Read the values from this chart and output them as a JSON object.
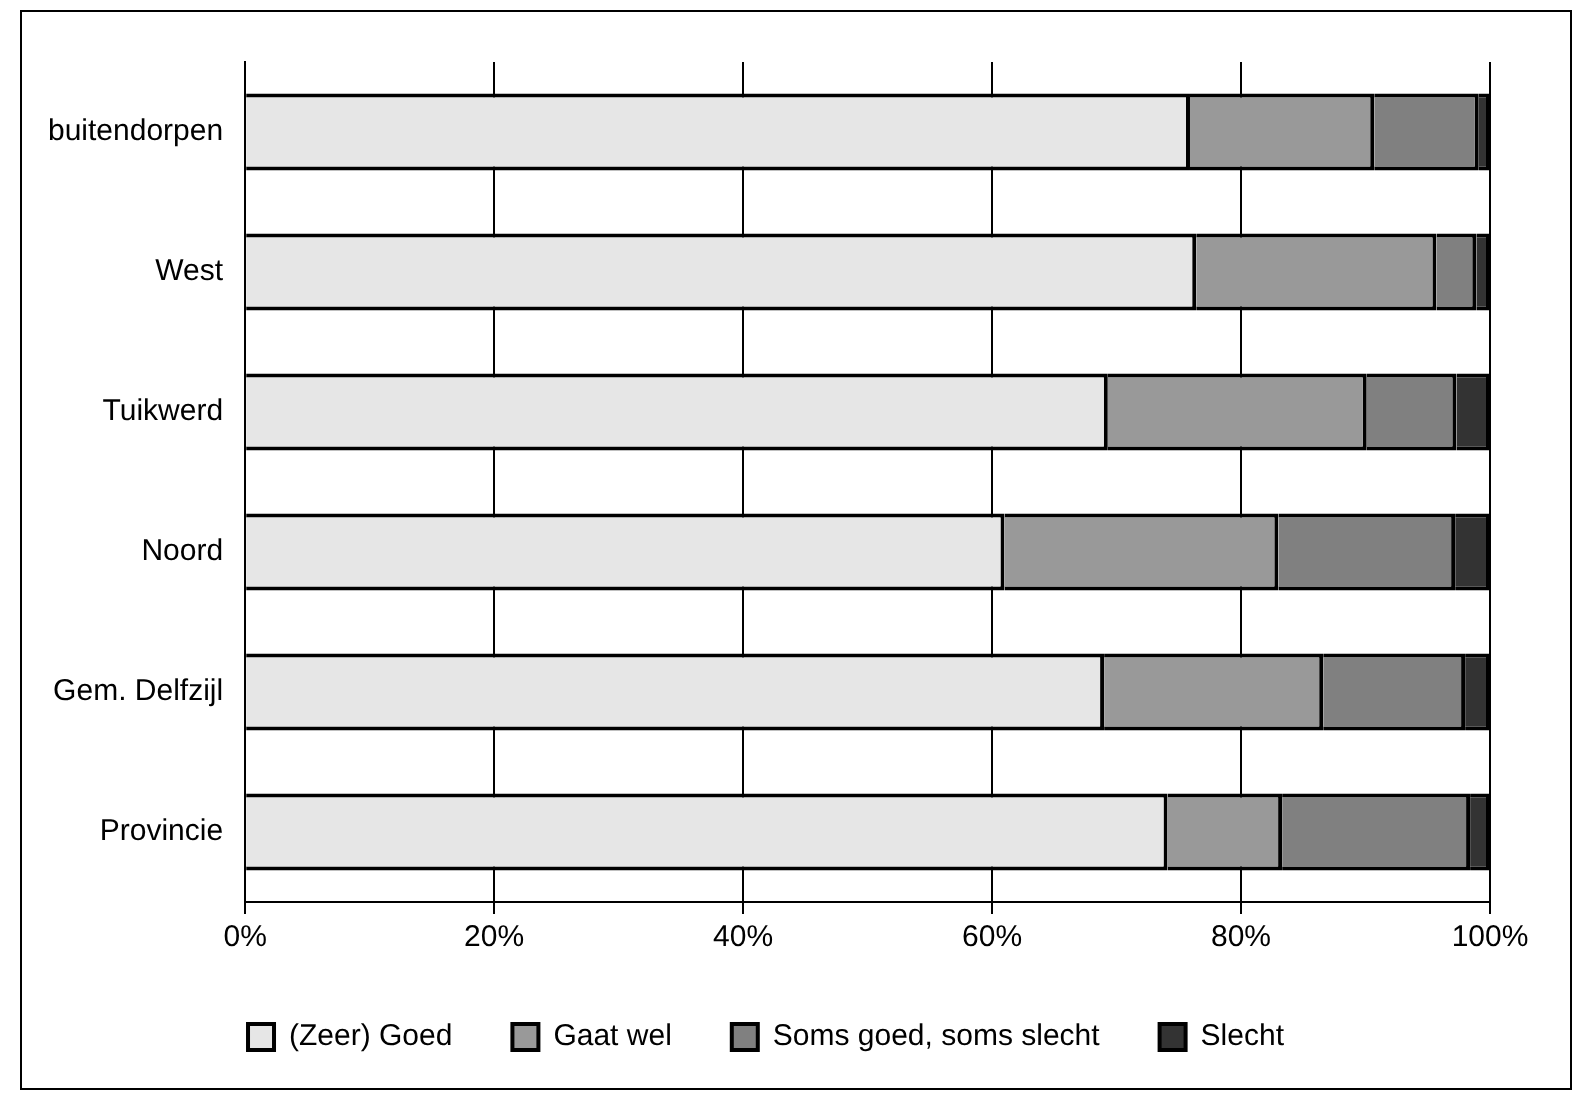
{
  "chart_data": {
    "type": "bar",
    "orientation": "horizontal",
    "stacked": true,
    "categories": [
      "buitendorpen",
      "West",
      "Tuikwerd",
      "Noord",
      "Gem. Delfzijl",
      "Provincie"
    ],
    "series": [
      {
        "name": "(Zeer) Goed",
        "color": "#e6e6e6",
        "values": [
          75.9,
          76.4,
          69.3,
          61,
          69,
          74.1
        ]
      },
      {
        "name": "Gaat wel",
        "color": "#999999",
        "values": [
          14.8,
          19.3,
          20.8,
          22,
          17.6,
          9.2
        ]
      },
      {
        "name": "Soms goed, soms slecht",
        "color": "#808080",
        "values": [
          8.4,
          3.2,
          7.2,
          14.2,
          11.4,
          15.1
        ]
      },
      {
        "name": "Slecht",
        "color": "#333333",
        "values": [
          0.9,
          1.1,
          2.7,
          2.8,
          2,
          1.6
        ]
      }
    ],
    "xlim": [
      0,
      100
    ],
    "xticks": [
      {
        "value": 0,
        "label": "0%"
      },
      {
        "value": 20,
        "label": "20%"
      },
      {
        "value": 40,
        "label": "40%"
      },
      {
        "value": 60,
        "label": "60%"
      },
      {
        "value": 80,
        "label": "80%"
      },
      {
        "value": 100,
        "label": "100%"
      }
    ],
    "grid": "x",
    "legend": "bottom"
  }
}
